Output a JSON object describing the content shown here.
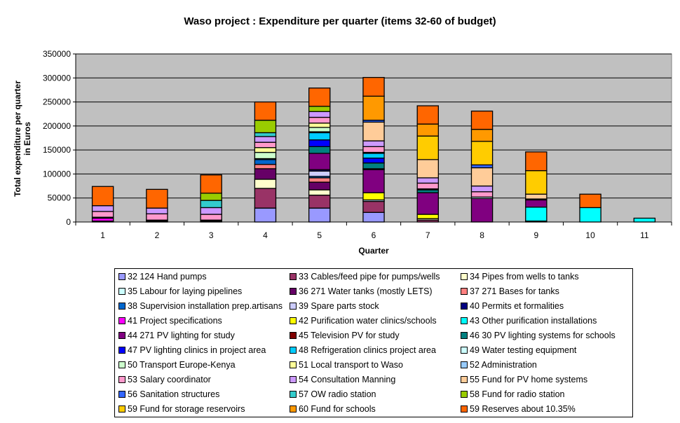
{
  "chart_data": {
    "type": "bar",
    "stacked": true,
    "title": "Waso project : Expenditure per quarter (items 32-60 of budget)",
    "xlabel": "Quarter",
    "ylabel": "Total expenditure per quarter in Euros",
    "ylabel_lines": [
      "Total expenditure per quarter",
      "in Euros"
    ],
    "ylim": [
      0,
      350000
    ],
    "yticks": [
      0,
      50000,
      100000,
      150000,
      200000,
      250000,
      300000,
      350000
    ],
    "ytick_labels": [
      "0",
      "50000",
      "100000",
      "150000",
      "200000",
      "250000",
      "300000",
      "350000"
    ],
    "grid": true,
    "plot_background": "#c0c0c0",
    "legend_position": "bottom",
    "categories": [
      "1",
      "2",
      "3",
      "4",
      "5",
      "6",
      "7",
      "8",
      "9",
      "10",
      "11"
    ],
    "series": [
      {
        "name": "32 124 Hand pumps",
        "color": "#9999ff",
        "values": [
          0,
          0,
          0,
          29000,
          29000,
          20000,
          0,
          0,
          0,
          0,
          0
        ]
      },
      {
        "name": "33 Cables/feed pipe for pumps/wells",
        "color": "#993366",
        "values": [
          0,
          0,
          0,
          41000,
          27000,
          23000,
          4000,
          0,
          0,
          0,
          0
        ]
      },
      {
        "name": "34 Pipes from wells to tanks",
        "color": "#ffffcc",
        "values": [
          0,
          0,
          0,
          19000,
          11000,
          0,
          3000,
          0,
          2000,
          0,
          0
        ]
      },
      {
        "name": "35 Labour for laying pipelines",
        "color": "#ccffff",
        "values": [
          0,
          0,
          0,
          0,
          0,
          3000,
          0,
          0,
          0,
          0,
          0
        ]
      },
      {
        "name": "36 271 Water tanks (mostly LETS)",
        "color": "#660066",
        "values": [
          0,
          2000,
          0,
          22000,
          16000,
          0,
          0,
          0,
          0,
          0,
          0
        ]
      },
      {
        "name": "37 271 Bases for tanks",
        "color": "#ff8080",
        "values": [
          0,
          0,
          0,
          9000,
          9000,
          0,
          0,
          0,
          0,
          0,
          0
        ]
      },
      {
        "name": "38 Supervision installation prep.artisans",
        "color": "#0066cc",
        "values": [
          0,
          0,
          2000,
          10000,
          3000,
          0,
          0,
          0,
          0,
          0,
          0
        ]
      },
      {
        "name": "39 Spare parts stock",
        "color": "#ccccff",
        "values": [
          0,
          0,
          0,
          0,
          11000,
          0,
          0,
          0,
          0,
          0,
          0
        ]
      },
      {
        "name": "40 Permits et formalities",
        "color": "#000080",
        "values": [
          2000,
          0,
          0,
          0,
          3000,
          0,
          0,
          0,
          0,
          0,
          0
        ]
      },
      {
        "name": "41 Project specifications",
        "color": "#ff00ff",
        "values": [
          6000,
          0,
          0,
          0,
          0,
          0,
          0,
          0,
          0,
          0,
          0
        ]
      },
      {
        "name": "42 Purification water clinics/schools",
        "color": "#ffff00",
        "values": [
          0,
          0,
          0,
          0,
          0,
          15000,
          9000,
          0,
          0,
          0,
          0
        ]
      },
      {
        "name": "43 Other purification installations",
        "color": "#00ffff",
        "values": [
          0,
          0,
          0,
          0,
          0,
          0,
          0,
          0,
          29000,
          30000,
          8000
        ]
      },
      {
        "name": "44 271 PV lighting for study",
        "color": "#800080",
        "values": [
          0,
          0,
          0,
          0,
          34000,
          48000,
          45000,
          49000,
          15000,
          0,
          0
        ]
      },
      {
        "name": "45 Television PV for study",
        "color": "#800000",
        "values": [
          0,
          0,
          0,
          0,
          0,
          2000,
          0,
          0,
          0,
          0,
          0
        ]
      },
      {
        "name": "46 30 PV lighting systems for schools",
        "color": "#008080",
        "values": [
          0,
          0,
          0,
          0,
          14000,
          12000,
          6000,
          0,
          0,
          0,
          0
        ]
      },
      {
        "name": "47 PV lighting clinics in project area",
        "color": "#0000ff",
        "values": [
          0,
          0,
          0,
          0,
          14000,
          10000,
          0,
          0,
          0,
          0,
          0
        ]
      },
      {
        "name": "48 Refrigeration clinics project area",
        "color": "#00ccff",
        "values": [
          0,
          0,
          0,
          0,
          15000,
          10000,
          0,
          0,
          0,
          0,
          0
        ]
      },
      {
        "name": "49 Water testing equipment",
        "color": "#ccffff",
        "values": [
          2000,
          2000,
          2000,
          2000,
          2000,
          2000,
          2000,
          3000,
          2000,
          0,
          0
        ]
      },
      {
        "name": "50 Transport Europe-Kenya",
        "color": "#ccffcc",
        "values": [
          0,
          0,
          0,
          13000,
          9000,
          0,
          0,
          0,
          0,
          0,
          0
        ]
      },
      {
        "name": "51 Local transport to Waso",
        "color": "#ffff99",
        "values": [
          0,
          0,
          0,
          10000,
          9000,
          0,
          0,
          0,
          0,
          0,
          0
        ]
      },
      {
        "name": "52 Administration",
        "color": "#99ccff",
        "values": [
          0,
          0,
          0,
          0,
          0,
          0,
          0,
          0,
          0,
          0,
          0
        ]
      },
      {
        "name": "53 Salary coordinator",
        "color": "#ff99cc",
        "values": [
          12000,
          13000,
          12000,
          11000,
          12000,
          12000,
          12000,
          11000,
          0,
          0,
          0
        ]
      },
      {
        "name": "54 Consultation Manning",
        "color": "#cc99ff",
        "values": [
          12000,
          12000,
          14000,
          12000,
          12000,
          12000,
          11000,
          12000,
          0,
          0,
          0
        ]
      },
      {
        "name": "55 Fund for PV home systems",
        "color": "#ffcc99",
        "values": [
          0,
          0,
          0,
          0,
          0,
          39000,
          38000,
          38000,
          10000,
          0,
          0
        ]
      },
      {
        "name": "56 Sanitation structures",
        "color": "#3366ff",
        "values": [
          0,
          0,
          0,
          0,
          0,
          4000,
          0,
          6000,
          0,
          0,
          0
        ]
      },
      {
        "name": "57 OW radio station",
        "color": "#33cccc",
        "values": [
          0,
          0,
          15000,
          8000,
          0,
          0,
          0,
          0,
          0,
          0,
          0
        ]
      },
      {
        "name": "58 Fund for radio station",
        "color": "#99cc00",
        "values": [
          0,
          0,
          15000,
          26000,
          11000,
          0,
          0,
          0,
          0,
          0,
          0
        ]
      },
      {
        "name": "59 Fund for storage reservoirs",
        "color": "#ffcc00",
        "values": [
          0,
          0,
          0,
          0,
          0,
          0,
          49000,
          49000,
          49000,
          0,
          0
        ]
      },
      {
        "name": "60 Fund for schools",
        "color": "#ff9900",
        "values": [
          0,
          0,
          0,
          0,
          0,
          50000,
          25000,
          25000,
          0,
          0,
          0
        ]
      },
      {
        "name": "59 Reserves about 10.35%",
        "color": "#ff6600",
        "values": [
          40000,
          39000,
          38000,
          38000,
          38000,
          39000,
          38000,
          38000,
          39000,
          28000,
          0
        ]
      }
    ]
  }
}
